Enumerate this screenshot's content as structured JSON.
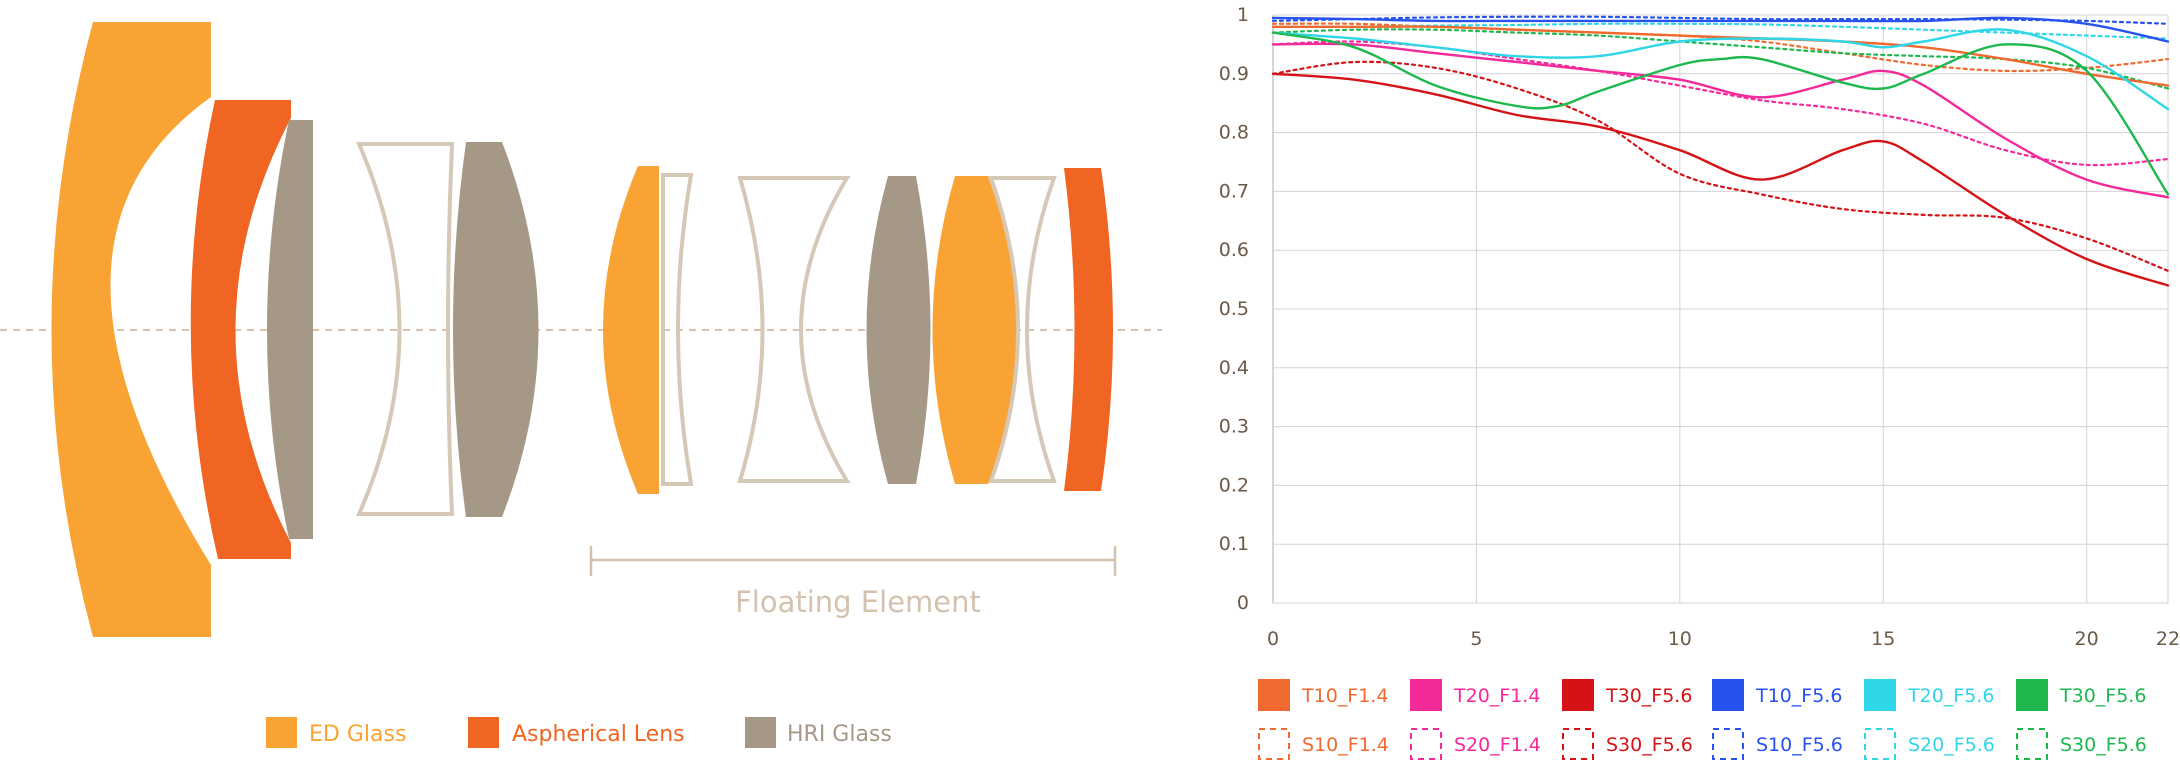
{
  "diagram": {
    "floating_label": "Floating Element",
    "legend": [
      {
        "label": "ED Glass",
        "color": "#FAA335"
      },
      {
        "label": "Aspherical Lens",
        "color": "#F06522"
      },
      {
        "label": "HRI Glass",
        "color": "#A69886"
      }
    ],
    "colors": {
      "ed": "#FAA335",
      "asph": "#F06522",
      "hri": "#A69886",
      "outline": "#D6C8B6",
      "axis": "#D9C2AE",
      "floating_text": "#D4C2AE"
    }
  },
  "chart_data": {
    "type": "line",
    "title": "",
    "xlabel": "",
    "ylabel": "",
    "xlim": [
      0,
      22
    ],
    "ylim": [
      0,
      1
    ],
    "xticks": [
      0,
      5,
      10,
      15,
      20,
      22
    ],
    "xtick_labels": [
      "0",
      "5",
      "10",
      "15",
      "20",
      "22"
    ],
    "yticks": [
      0,
      0.1,
      0.2,
      0.3,
      0.4,
      0.5,
      0.6,
      0.7,
      0.8,
      0.9,
      1
    ],
    "ytick_labels": [
      "0",
      "0.1",
      "0.2",
      "0.3",
      "0.4",
      "0.5",
      "0.6",
      "0.7",
      "0.8",
      "0.9",
      "1"
    ],
    "grid": true,
    "legend_position": "bottom",
    "series": [
      {
        "name": "T10_F1.4",
        "color": "#F06A2F",
        "style": "solid",
        "x": [
          0,
          2,
          4,
          6,
          8,
          10,
          12,
          14,
          16,
          18,
          20,
          22
        ],
        "y": [
          0.98,
          0.98,
          0.98,
          0.975,
          0.97,
          0.965,
          0.96,
          0.955,
          0.945,
          0.925,
          0.9,
          0.88
        ]
      },
      {
        "name": "T20_F1.4",
        "color": "#F4299A",
        "style": "solid",
        "x": [
          0,
          2,
          4,
          6,
          8,
          10,
          12,
          14,
          15,
          16,
          18,
          20,
          22
        ],
        "y": [
          0.95,
          0.95,
          0.935,
          0.92,
          0.905,
          0.89,
          0.86,
          0.89,
          0.905,
          0.88,
          0.79,
          0.72,
          0.69
        ]
      },
      {
        "name": "T30_F5.6",
        "color": "#D51317",
        "style": "solid",
        "x": [
          0,
          2,
          4,
          6,
          8,
          10,
          12,
          14,
          15,
          16,
          18,
          20,
          22
        ],
        "y": [
          0.9,
          0.89,
          0.865,
          0.83,
          0.81,
          0.77,
          0.72,
          0.77,
          0.785,
          0.75,
          0.66,
          0.585,
          0.54
        ]
      },
      {
        "name": "T10_F5.6",
        "color": "#2752F0",
        "style": "solid",
        "x": [
          0,
          2,
          4,
          6,
          8,
          10,
          12,
          14,
          16,
          18,
          20,
          22
        ],
        "y": [
          0.995,
          0.993,
          0.99,
          0.99,
          0.99,
          0.99,
          0.99,
          0.99,
          0.99,
          0.995,
          0.985,
          0.955
        ]
      },
      {
        "name": "T20_F5.6",
        "color": "#2FD6E8",
        "style": "solid",
        "x": [
          0,
          2,
          4,
          6,
          8,
          10,
          12,
          14,
          15,
          16,
          18,
          20,
          22
        ],
        "y": [
          0.97,
          0.96,
          0.945,
          0.93,
          0.93,
          0.955,
          0.96,
          0.955,
          0.945,
          0.955,
          0.975,
          0.93,
          0.84
        ]
      },
      {
        "name": "T30_F5.6",
        "color": "#1DB84E",
        "style": "solid",
        "x": [
          0,
          2,
          4,
          6,
          7,
          8,
          10,
          11,
          12,
          14,
          15,
          16,
          18,
          20,
          22
        ],
        "y": [
          0.97,
          0.945,
          0.88,
          0.845,
          0.845,
          0.87,
          0.915,
          0.925,
          0.925,
          0.885,
          0.875,
          0.9,
          0.95,
          0.905,
          0.695
        ]
      },
      {
        "name": "S10_F1.4",
        "color": "#F06A2F",
        "style": "dashed",
        "x": [
          0,
          2,
          4,
          6,
          8,
          10,
          12,
          14,
          16,
          18,
          20,
          22
        ],
        "y": [
          0.985,
          0.985,
          0.98,
          0.975,
          0.97,
          0.965,
          0.955,
          0.935,
          0.915,
          0.905,
          0.91,
          0.925
        ]
      },
      {
        "name": "S20_F1.4",
        "color": "#F4299A",
        "style": "dashed",
        "x": [
          0,
          2,
          4,
          6,
          8,
          10,
          12,
          14,
          16,
          18,
          20,
          22
        ],
        "y": [
          0.95,
          0.955,
          0.945,
          0.925,
          0.905,
          0.88,
          0.855,
          0.84,
          0.815,
          0.77,
          0.745,
          0.755
        ]
      },
      {
        "name": "S30_F5.6",
        "color": "#D51317",
        "style": "dashed",
        "x": [
          0,
          2,
          4,
          6,
          8,
          10,
          12,
          14,
          16,
          18,
          20,
          22
        ],
        "y": [
          0.9,
          0.92,
          0.91,
          0.875,
          0.82,
          0.73,
          0.695,
          0.67,
          0.66,
          0.655,
          0.62,
          0.565
        ]
      },
      {
        "name": "S10_F5.6",
        "color": "#2752F0",
        "style": "dashed",
        "x": [
          0,
          2,
          4,
          6,
          8,
          10,
          12,
          14,
          16,
          18,
          20,
          22
        ],
        "y": [
          0.99,
          0.993,
          0.996,
          0.997,
          0.997,
          0.995,
          0.993,
          0.993,
          0.993,
          0.992,
          0.99,
          0.985
        ]
      },
      {
        "name": "S20_F5.6",
        "color": "#2FD6E8",
        "style": "dashed",
        "x": [
          0,
          2,
          4,
          6,
          8,
          10,
          12,
          14,
          16,
          18,
          20,
          22
        ],
        "y": [
          0.98,
          0.98,
          0.982,
          0.983,
          0.985,
          0.985,
          0.984,
          0.98,
          0.975,
          0.97,
          0.965,
          0.96
        ]
      },
      {
        "name": "S30_F5.6",
        "color": "#1DB84E",
        "style": "dashed",
        "x": [
          0,
          2,
          4,
          6,
          8,
          10,
          12,
          14,
          16,
          18,
          20,
          22
        ],
        "y": [
          0.97,
          0.975,
          0.975,
          0.97,
          0.965,
          0.955,
          0.945,
          0.935,
          0.93,
          0.925,
          0.91,
          0.875
        ]
      }
    ]
  }
}
